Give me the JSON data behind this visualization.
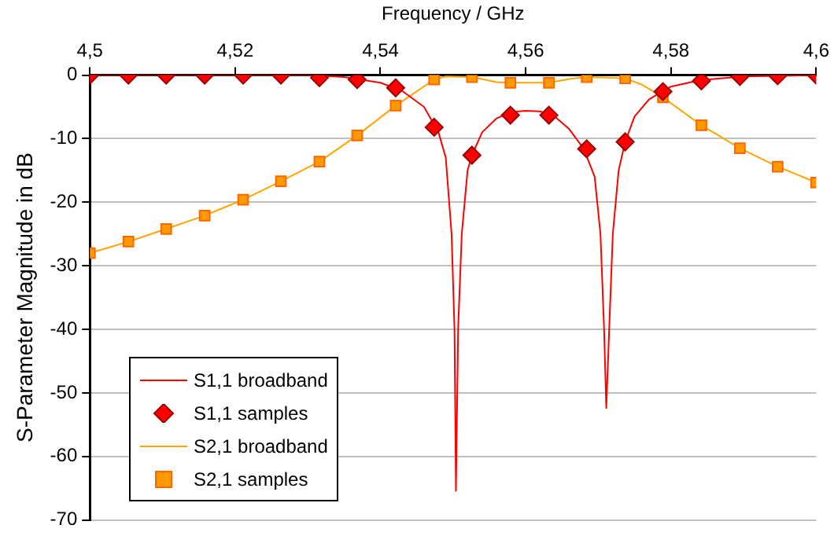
{
  "chart_data": {
    "type": "line",
    "xlabel": "Frequency / GHz",
    "ylabel": "S-Parameter Magnitude in dB",
    "xlim": [
      4.5,
      4.6
    ],
    "xticks": [
      {
        "value": 4.5,
        "label": "4,5"
      },
      {
        "value": 4.52,
        "label": "4,52"
      },
      {
        "value": 4.54,
        "label": "4,54"
      },
      {
        "value": 4.56,
        "label": "4,56"
      },
      {
        "value": 4.58,
        "label": "4,58"
      },
      {
        "value": 4.6,
        "label": "4,6"
      }
    ],
    "ylim": [
      -70,
      0
    ],
    "yticks": [
      -70,
      -60,
      -50,
      -40,
      -30,
      -20,
      -10,
      0
    ],
    "grid": "y",
    "legend": "bottom left",
    "series": [
      {
        "name": "S1,1 broadband",
        "type": "line",
        "marker": "none",
        "color": "#ff0000",
        "x": [
          4.5,
          4.53,
          4.535,
          4.54,
          4.543,
          4.546,
          4.548,
          4.549,
          4.5498,
          4.5502,
          4.5504,
          4.5507,
          4.5512,
          4.552,
          4.5526,
          4.554,
          4.556,
          4.558,
          4.56,
          4.562,
          4.564,
          4.566,
          4.568,
          4.5695,
          4.5703,
          4.5708,
          4.5711,
          4.5715,
          4.572,
          4.5728,
          4.5737,
          4.575,
          4.577,
          4.58,
          4.584,
          4.59,
          4.6
        ],
        "values": [
          0,
          0,
          -0.3,
          -1.2,
          -2.5,
          -5,
          -9,
          -13,
          -25,
          -40,
          -65.4,
          -40,
          -25,
          -15,
          -12.6,
          -9,
          -6.8,
          -5.8,
          -5.6,
          -5.7,
          -6.5,
          -8.5,
          -11.6,
          -16,
          -25,
          -40,
          -52.4,
          -40,
          -25,
          -15,
          -10.5,
          -6.5,
          -3.8,
          -1.8,
          -0.8,
          -0.2,
          0
        ]
      },
      {
        "name": "S1,1 samples",
        "type": "scatter",
        "marker": "diamond",
        "color": "#ff0000",
        "x": [
          4.5,
          4.5053,
          4.5105,
          4.5158,
          4.5211,
          4.5263,
          4.5316,
          4.5368,
          4.5421,
          4.5474,
          4.5526,
          4.5579,
          4.5632,
          4.5684,
          4.5737,
          4.5789,
          4.5842,
          4.5895,
          4.5947,
          4.6
        ],
        "values": [
          0,
          0,
          0,
          0,
          0,
          0,
          -0.4,
          -0.7,
          -2,
          -8.2,
          -12.6,
          -6.3,
          -6.3,
          -11.6,
          -10.5,
          -2.6,
          -0.9,
          -0.2,
          -0.1,
          0
        ]
      },
      {
        "name": "S2,1 broadband",
        "type": "line",
        "marker": "none",
        "color": "#ffa500",
        "x": [
          4.5,
          4.5053,
          4.5105,
          4.5158,
          4.5211,
          4.5263,
          4.5316,
          4.5368,
          4.5421,
          4.5474,
          4.549,
          4.5526,
          4.556,
          4.5579,
          4.5632,
          4.566,
          4.5684,
          4.5737,
          4.576,
          4.5789,
          4.5842,
          4.5895,
          4.5947,
          4.6
        ],
        "values": [
          -28,
          -26.2,
          -24.2,
          -22.1,
          -19.6,
          -16.7,
          -13.6,
          -9.5,
          -4.8,
          -0.7,
          -0.2,
          -0.3,
          -1.1,
          -1.2,
          -1.2,
          -0.6,
          -0.3,
          -0.5,
          -1.5,
          -3.5,
          -7.9,
          -11.5,
          -14.4,
          -16.9
        ]
      },
      {
        "name": "S2,1 samples",
        "type": "scatter",
        "marker": "square",
        "color": "#ff9900",
        "x": [
          4.5,
          4.5053,
          4.5105,
          4.5158,
          4.5211,
          4.5263,
          4.5316,
          4.5368,
          4.5421,
          4.5474,
          4.5526,
          4.5579,
          4.5632,
          4.5684,
          4.5737,
          4.5789,
          4.5842,
          4.5895,
          4.5947,
          4.6
        ],
        "values": [
          -28,
          -26.2,
          -24.2,
          -22.1,
          -19.6,
          -16.7,
          -13.6,
          -9.5,
          -4.8,
          -0.7,
          -0.3,
          -1.2,
          -1.2,
          -0.3,
          -0.5,
          -3.5,
          -7.9,
          -11.5,
          -14.4,
          -16.9
        ]
      }
    ]
  }
}
